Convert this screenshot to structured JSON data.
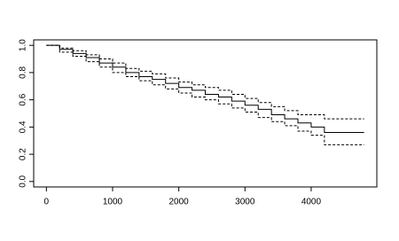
{
  "chart_data": {
    "type": "line",
    "step": true,
    "x": [
      0,
      200,
      400,
      600,
      800,
      1000,
      1200,
      1400,
      1600,
      1800,
      2000,
      2200,
      2400,
      2600,
      2800,
      3000,
      3200,
      3400,
      3600,
      3800,
      4000,
      4200,
      4800
    ],
    "series": [
      {
        "color": "#000000",
        "dash": false,
        "values": [
          1.0,
          0.97,
          0.94,
          0.91,
          0.87,
          0.84,
          0.8,
          0.77,
          0.75,
          0.72,
          0.69,
          0.67,
          0.64,
          0.62,
          0.59,
          0.56,
          0.53,
          0.49,
          0.46,
          0.43,
          0.4,
          0.36,
          0.36
        ]
      },
      {
        "color": "#000000",
        "dash": true,
        "values": [
          1.0,
          0.98,
          0.96,
          0.93,
          0.9,
          0.87,
          0.83,
          0.81,
          0.79,
          0.76,
          0.73,
          0.71,
          0.69,
          0.67,
          0.64,
          0.61,
          0.58,
          0.55,
          0.52,
          0.49,
          0.49,
          0.46,
          0.46
        ]
      },
      {
        "color": "#000000",
        "dash": true,
        "values": [
          1.0,
          0.95,
          0.92,
          0.88,
          0.84,
          0.8,
          0.77,
          0.74,
          0.71,
          0.68,
          0.65,
          0.62,
          0.6,
          0.57,
          0.54,
          0.51,
          0.47,
          0.44,
          0.41,
          0.37,
          0.34,
          0.27,
          0.27
        ]
      }
    ],
    "xlim": [
      -192,
      4992
    ],
    "ylim": [
      -0.04,
      1.04
    ],
    "xticks": [
      0,
      1000,
      2000,
      3000,
      4000
    ],
    "yticks": [
      {
        "value": 0,
        "label": "0.0"
      },
      0.2,
      0.4,
      0.6,
      0.8,
      {
        "value": 1,
        "label": "1.0"
      }
    ]
  }
}
